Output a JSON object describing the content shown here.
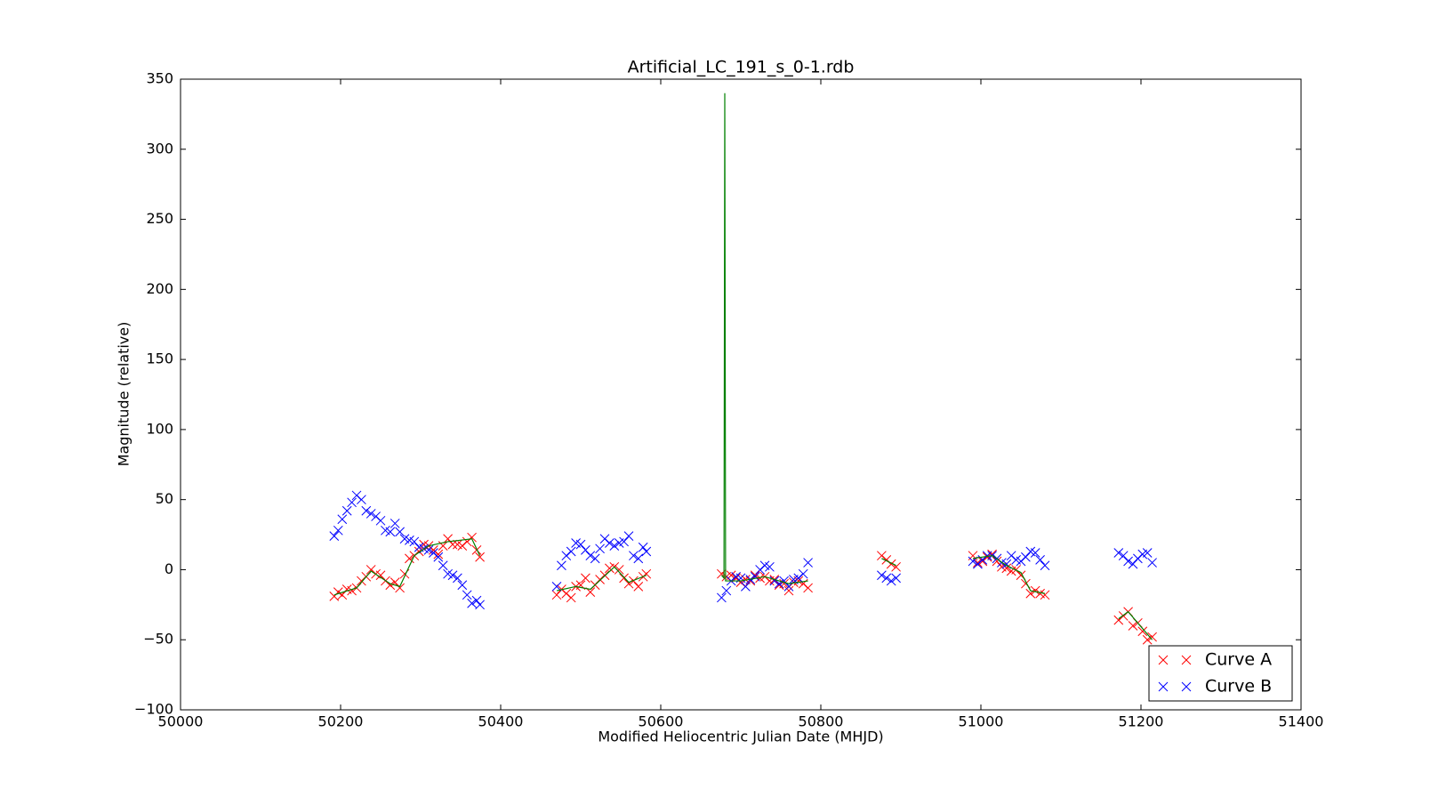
{
  "chart_data": {
    "type": "scatter",
    "title": "Artificial_LC_191_s_0-1.rdb",
    "x_label": "Modified Heliocentric Julian Date (MHJD)",
    "y_label": "Magnitude (relative)",
    "xlim": [
      50000,
      51400
    ],
    "xticks": [
      50000,
      50200,
      50400,
      50600,
      50800,
      51000,
      51200,
      51400
    ],
    "ylim": [
      -100,
      350
    ],
    "yticks": [
      {
        "value": -100,
        "label": "−100"
      },
      {
        "value": -50,
        "label": "−50"
      },
      0,
      50,
      100,
      150,
      200,
      250,
      300,
      350
    ],
    "legend": "lower right",
    "series": [
      {
        "name": "Curve A",
        "color": "#ff0000",
        "marker": "x",
        "x": [
          50192,
          50197,
          50202,
          50208,
          50214,
          50220,
          50226,
          50232,
          50238,
          50244,
          50250,
          50256,
          50262,
          50268,
          50274,
          50280,
          50286,
          50292,
          50298,
          50304,
          50310,
          50316,
          50322,
          50328,
          50334,
          50340,
          50346,
          50352,
          50358,
          50364,
          50370,
          50374,
          50470,
          50476,
          50482,
          50488,
          50494,
          50500,
          50506,
          50512,
          50518,
          50524,
          50530,
          50536,
          50542,
          50548,
          50554,
          50560,
          50566,
          50572,
          50578,
          50582,
          50676,
          50682,
          50688,
          50694,
          50700,
          50706,
          50712,
          50718,
          50724,
          50730,
          50736,
          50742,
          50748,
          50754,
          50760,
          50766,
          50772,
          50778,
          50784,
          50876,
          50882,
          50888,
          50894,
          50990,
          50996,
          51002,
          51008,
          51014,
          51020,
          51026,
          51032,
          51038,
          51044,
          51050,
          51056,
          51062,
          51068,
          51074,
          51080,
          51172,
          51178,
          51184,
          51190,
          51196,
          51202,
          51208,
          51214
        ],
        "values": [
          -19,
          -16,
          -18,
          -14,
          -15,
          -13,
          -8,
          -5,
          0,
          -3,
          -4,
          -8,
          -11,
          -9,
          -13,
          -3,
          8,
          10,
          13,
          18,
          17,
          14,
          11,
          17,
          22,
          18,
          18,
          17,
          20,
          23,
          14,
          9,
          -18,
          -14,
          -17,
          -20,
          -12,
          -11,
          -6,
          -16,
          -11,
          -7,
          -4,
          1,
          2,
          0,
          -6,
          -10,
          -8,
          -12,
          -5,
          -3,
          -3,
          -5,
          -4,
          -6,
          -9,
          -7,
          -8,
          -4,
          -6,
          -5,
          -8,
          -7,
          -11,
          -10,
          -15,
          -9,
          -8,
          -10,
          -13,
          10,
          7,
          4,
          2,
          10,
          5,
          6,
          9,
          11,
          6,
          2,
          1,
          -1,
          0,
          -4,
          -10,
          -17,
          -15,
          -17,
          -18,
          -36,
          -33,
          -30,
          -40,
          -38,
          -44,
          -50,
          -48
        ]
      },
      {
        "name": "Curve B",
        "color": "#0000ff",
        "marker": "x",
        "x": [
          50192,
          50197,
          50202,
          50208,
          50214,
          50220,
          50226,
          50232,
          50238,
          50244,
          50250,
          50256,
          50262,
          50268,
          50274,
          50280,
          50286,
          50292,
          50298,
          50304,
          50310,
          50316,
          50322,
          50328,
          50334,
          50340,
          50346,
          50352,
          50358,
          50364,
          50370,
          50374,
          50470,
          50476,
          50482,
          50488,
          50494,
          50500,
          50506,
          50512,
          50518,
          50524,
          50530,
          50536,
          50542,
          50548,
          50554,
          50560,
          50566,
          50572,
          50578,
          50582,
          50676,
          50682,
          50688,
          50694,
          50700,
          50706,
          50712,
          50718,
          50724,
          50730,
          50736,
          50742,
          50748,
          50754,
          50760,
          50766,
          50772,
          50778,
          50784,
          50876,
          50882,
          50888,
          50894,
          50990,
          50996,
          51002,
          51008,
          51014,
          51020,
          51026,
          51032,
          51038,
          51044,
          51050,
          51056,
          51062,
          51068,
          51074,
          51080,
          51172,
          51178,
          51184,
          51190,
          51196,
          51202,
          51208,
          51214
        ],
        "values": [
          24,
          28,
          36,
          42,
          48,
          53,
          50,
          42,
          40,
          38,
          35,
          28,
          27,
          33,
          27,
          22,
          21,
          20,
          16,
          15,
          14,
          12,
          9,
          3,
          -3,
          -4,
          -6,
          -11,
          -18,
          -24,
          -22,
          -25,
          -12,
          3,
          10,
          13,
          19,
          18,
          14,
          10,
          8,
          15,
          22,
          19,
          17,
          19,
          20,
          24,
          10,
          8,
          16,
          13,
          -20,
          -15,
          -8,
          -5,
          -6,
          -12,
          -7,
          -5,
          0,
          3,
          2,
          -8,
          -10,
          -8,
          -12,
          -7,
          -6,
          -3,
          5,
          -4,
          -6,
          -8,
          -6,
          6,
          4,
          7,
          10,
          10,
          8,
          5,
          4,
          10,
          7,
          6,
          9,
          13,
          12,
          7,
          3,
          12,
          10,
          6,
          4,
          8,
          11,
          12,
          5
        ]
      },
      {
        "color": "#008000",
        "marker": "line",
        "x": [
          50192,
          50220,
          50238,
          50262,
          50274,
          50292,
          50310,
          50334,
          50364,
          50374,
          null,
          50470,
          50494,
          50512,
          50542,
          50560,
          50582,
          null,
          50676,
          50679,
          50680,
          50681,
          50700,
          50730,
          50760,
          50784,
          null,
          50876,
          50894,
          null,
          50990,
          51014,
          51032,
          51050,
          51062,
          51080,
          null,
          51172,
          51184,
          51196,
          51214
        ],
        "values": [
          -18,
          -13,
          -1,
          -10,
          -12,
          10,
          17,
          20,
          22,
          10,
          null,
          -15,
          -12,
          -14,
          2,
          -9,
          -4,
          null,
          -4,
          -6,
          340,
          -8,
          -8,
          -5,
          -10,
          -8,
          null,
          8,
          3,
          null,
          8,
          10,
          3,
          -2,
          -15,
          -17,
          null,
          -35,
          -30,
          -38,
          -50
        ]
      }
    ]
  }
}
